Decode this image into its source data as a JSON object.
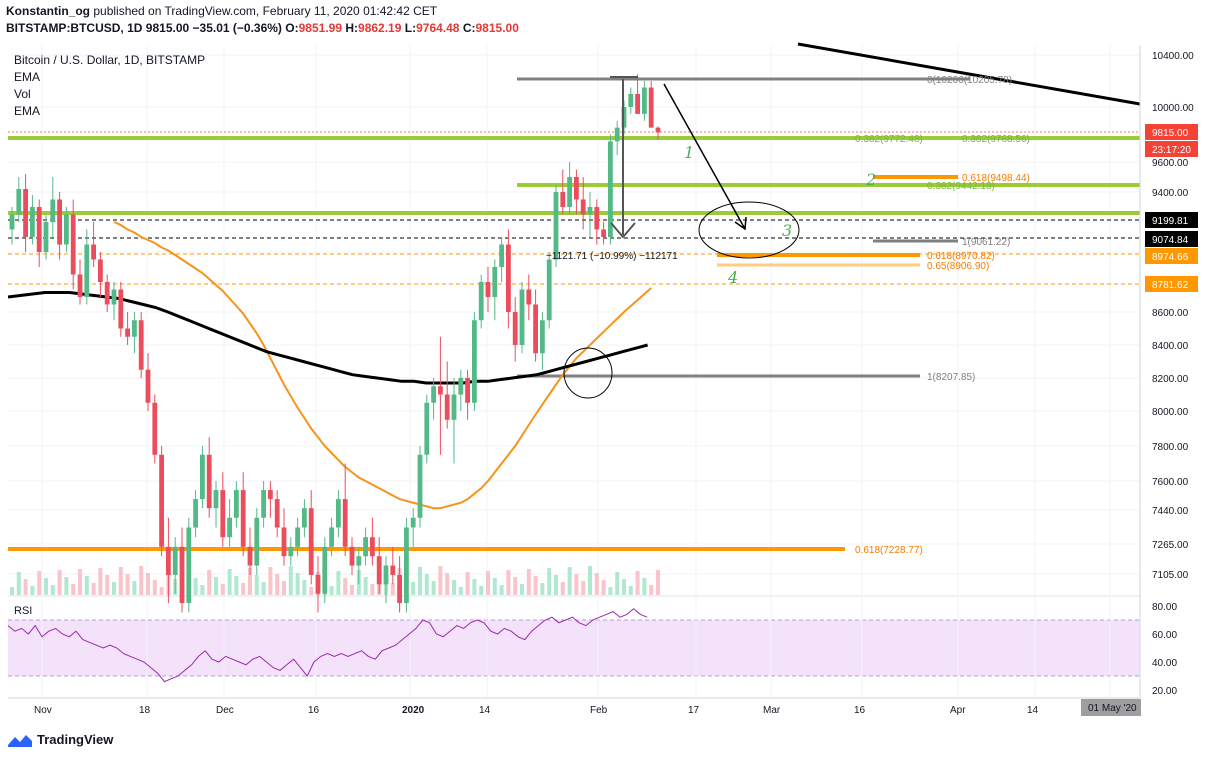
{
  "header": {
    "author": "Konstantin_og",
    "published_text": "published on TradingView.com, February 11, 2020 01:42:42 CET",
    "symbol": "BITSTAMP:BTCUSD, 1D",
    "last": "9815.00",
    "change": "−35.01 (−0.36%)",
    "o_label": "O:",
    "o": "9851.99",
    "h_label": "H:",
    "h": "9862.19",
    "l_label": "L:",
    "l": "9764.48",
    "c_label": "C:",
    "c": "9815.00"
  },
  "legend": {
    "title": "Bitcoin / U.S. Dollar, 1D, BITSTAMP",
    "items": [
      "EMA",
      "Vol",
      "EMA"
    ]
  },
  "rsi_label": "RSI",
  "footer": {
    "brand": "TradingView"
  },
  "colors": {
    "up": "#53b987",
    "down": "#eb4d5c",
    "ema_orange": "#f7931a",
    "ema_black": "#000000",
    "fib_green": "#9ccc35",
    "fib_orange": "#ff9800",
    "fib_gray": "#808080",
    "rsi_line": "#9c27b0",
    "rsi_band": "#f3e2fa"
  },
  "chart_data": {
    "type": "candlestick",
    "title": "Bitcoin / U.S. Dollar, 1D, BITSTAMP",
    "x_ticks": [
      "Nov",
      "18",
      "Dec",
      "16",
      "2020",
      "14",
      "Feb",
      "17",
      "Mar",
      "16",
      "Apr",
      "14",
      "01 May '20"
    ],
    "y_ticks": [
      "10400.00",
      "10000.00",
      "9600.00",
      "9400.00",
      "9200.00",
      "9000.00",
      "8600.00",
      "8400.00",
      "8200.00",
      "8000.00",
      "7800.00",
      "7600.00",
      "7440.00",
      "7265.00",
      "7105.00"
    ],
    "rsi_ticks": [
      "80.00",
      "60.00",
      "40.00",
      "20.00"
    ],
    "price_labels": [
      {
        "text": "9815.00",
        "kind": "last"
      },
      {
        "text": "23:17:20",
        "kind": "timer"
      },
      {
        "text": "9199.81",
        "kind": "black"
      },
      {
        "text": "9074.84",
        "kind": "black"
      },
      {
        "text": "8974.66",
        "kind": "orange"
      },
      {
        "text": "8781.62",
        "kind": "orange"
      }
    ],
    "fib_labels": [
      {
        "text": "0(10206(10205.78)",
        "color": "gray"
      },
      {
        "text": "0.382(9772.48)",
        "color": "green"
      },
      {
        "text": "0.382(9768.56)",
        "color": "green"
      },
      {
        "text": "0.618(9498.44)",
        "color": "orange"
      },
      {
        "text": "0.382(9442.18)",
        "color": "green"
      },
      {
        "text": "1(9061.22)",
        "color": "gray"
      },
      {
        "text": "0.618(8970.82)",
        "color": "orange"
      },
      {
        "text": "0.65(8906.90)",
        "color": "orange"
      },
      {
        "text": "1(8207.85)",
        "color": "gray"
      },
      {
        "text": "0.618(7228.77)",
        "color": "orange"
      }
    ],
    "measure_label": "−1121.71 (−10.99%) −112171",
    "wave_numbers": [
      "1",
      "2",
      "3",
      "4"
    ],
    "candles": [
      [
        9150,
        9300,
        9050,
        9250
      ],
      [
        9250,
        9500,
        9200,
        9420
      ],
      [
        9420,
        9520,
        9000,
        9100
      ],
      [
        9100,
        9380,
        9050,
        9300
      ],
      [
        9300,
        9350,
        8900,
        9000
      ],
      [
        9000,
        9250,
        8950,
        9200
      ],
      [
        9200,
        9500,
        9100,
        9350
      ],
      [
        9350,
        9400,
        8950,
        9050
      ],
      [
        9050,
        9300,
        9000,
        9250
      ],
      [
        9250,
        9350,
        8750,
        8850
      ],
      [
        8850,
        8950,
        8650,
        8700
      ],
      [
        8700,
        9150,
        8650,
        9050
      ],
      [
        9050,
        9200,
        8900,
        8950
      ],
      [
        8950,
        9000,
        8700,
        8800
      ],
      [
        8800,
        8850,
        8600,
        8650
      ],
      [
        8650,
        8800,
        8550,
        8750
      ],
      [
        8750,
        8800,
        8450,
        8500
      ],
      [
        8500,
        8600,
        8400,
        8450
      ],
      [
        8450,
        8600,
        8350,
        8550
      ],
      [
        8550,
        8600,
        8200,
        8250
      ],
      [
        8250,
        8350,
        8000,
        8050
      ],
      [
        8050,
        8100,
        7700,
        7750
      ],
      [
        7750,
        7800,
        7200,
        7250
      ],
      [
        7250,
        7400,
        6950,
        7100
      ],
      [
        7100,
        7300,
        7000,
        7250
      ],
      [
        7250,
        7350,
        6900,
        6950
      ],
      [
        6950,
        7400,
        6900,
        7350
      ],
      [
        7350,
        7550,
        7300,
        7500
      ],
      [
        7500,
        7800,
        7450,
        7750
      ],
      [
        7750,
        7850,
        7400,
        7450
      ],
      [
        7450,
        7600,
        7350,
        7550
      ],
      [
        7550,
        7650,
        7250,
        7300
      ],
      [
        7300,
        7500,
        7250,
        7400
      ],
      [
        7400,
        7600,
        7350,
        7550
      ],
      [
        7550,
        7650,
        7200,
        7250
      ],
      [
        7250,
        7350,
        7100,
        7150
      ],
      [
        7150,
        7450,
        7100,
        7400
      ],
      [
        7400,
        7600,
        7350,
        7550
      ],
      [
        7550,
        7600,
        7400,
        7500
      ],
      [
        7500,
        7550,
        7300,
        7350
      ],
      [
        7350,
        7450,
        7150,
        7200
      ],
      [
        7200,
        7300,
        7150,
        7250
      ],
      [
        7250,
        7400,
        7200,
        7350
      ],
      [
        7350,
        7500,
        7300,
        7450
      ],
      [
        7450,
        7550,
        7050,
        7100
      ],
      [
        7100,
        7200,
        6900,
        7000
      ],
      [
        7000,
        7300,
        6950,
        7250
      ],
      [
        7250,
        7400,
        7200,
        7350
      ],
      [
        7350,
        7550,
        7300,
        7500
      ],
      [
        7500,
        7700,
        7200,
        7250
      ],
      [
        7250,
        7300,
        7100,
        7150
      ],
      [
        7150,
        7250,
        7050,
        7200
      ],
      [
        7200,
        7350,
        7150,
        7300
      ],
      [
        7300,
        7400,
        7150,
        7200
      ],
      [
        7200,
        7300,
        7000,
        7050
      ],
      [
        7050,
        7200,
        6950,
        7150
      ],
      [
        7150,
        7250,
        7050,
        7100
      ],
      [
        7100,
        7200,
        6900,
        6950
      ],
      [
        6950,
        7400,
        6900,
        7350
      ],
      [
        7350,
        7450,
        7250,
        7400
      ],
      [
        7400,
        7800,
        7350,
        7750
      ],
      [
        7750,
        8100,
        7700,
        8050
      ],
      [
        8050,
        8200,
        7950,
        8150
      ],
      [
        8150,
        8450,
        7750,
        8100
      ],
      [
        8100,
        8300,
        7900,
        7950
      ],
      [
        7950,
        8200,
        7700,
        8100
      ],
      [
        8100,
        8250,
        8000,
        8200
      ],
      [
        8200,
        8250,
        7950,
        8050
      ],
      [
        8050,
        8600,
        8000,
        8550
      ],
      [
        8550,
        8850,
        8500,
        8800
      ],
      [
        8800,
        8900,
        8600,
        8700
      ],
      [
        8700,
        8950,
        8550,
        8900
      ],
      [
        8900,
        9100,
        8800,
        9050
      ],
      [
        9050,
        9150,
        8500,
        8600
      ],
      [
        8600,
        8700,
        8300,
        8400
      ],
      [
        8400,
        8800,
        8350,
        8750
      ],
      [
        8750,
        8850,
        8550,
        8650
      ],
      [
        8650,
        8750,
        8300,
        8350
      ],
      [
        8350,
        8600,
        8250,
        8550
      ],
      [
        8550,
        9000,
        8500,
        8950
      ],
      [
        8950,
        9450,
        8900,
        9400
      ],
      [
        9400,
        9550,
        9250,
        9300
      ],
      [
        9300,
        9600,
        9250,
        9500
      ],
      [
        9500,
        9550,
        9250,
        9350
      ],
      [
        9350,
        9500,
        9150,
        9250
      ],
      [
        9250,
        9400,
        9100,
        9300
      ],
      [
        9300,
        9350,
        9050,
        9150
      ],
      [
        9150,
        9200,
        9050,
        9100
      ],
      [
        9100,
        9800,
        9050,
        9750
      ],
      [
        9750,
        9900,
        9650,
        9850
      ],
      [
        9850,
        10050,
        9800,
        10000
      ],
      [
        10000,
        10150,
        9950,
        10100
      ],
      [
        10100,
        10250,
        9950,
        9950
      ],
      [
        9950,
        10200,
        9900,
        10150
      ],
      [
        10150,
        10200,
        9850,
        9850
      ],
      [
        9850,
        9860,
        9760,
        9815
      ]
    ],
    "ema_orange": [
      9200,
      9180,
      9150,
      9130,
      9100,
      9080,
      9060,
      9030,
      9010,
      8980,
      8950,
      8920,
      8890,
      8860,
      8820,
      8780,
      8740,
      8690,
      8640,
      8590,
      8530,
      8470,
      8400,
      8320,
      8240,
      8160,
      8090,
      8020,
      7960,
      7900,
      7850,
      7800,
      7760,
      7720,
      7680,
      7650,
      7620,
      7600,
      7580,
      7560,
      7540,
      7520,
      7500,
      7490,
      7480,
      7470,
      7460,
      7450,
      7450,
      7460,
      7470,
      7480,
      7500,
      7530,
      7560,
      7600,
      7650,
      7700,
      7750,
      7800,
      7860,
      7920,
      7980,
      8040,
      8100,
      8160,
      8220,
      8270,
      8320,
      8360,
      8400,
      8440,
      8480,
      8520,
      8560,
      8600,
      8640,
      8680,
      8720,
      8760
    ],
    "ema_black": [
      8700,
      8710,
      8720,
      8730,
      8730,
      8730,
      8720,
      8710,
      8700,
      8690,
      8670,
      8650,
      8630,
      8600,
      8570,
      8540,
      8510,
      8480,
      8450,
      8420,
      8390,
      8360,
      8340,
      8320,
      8300,
      8280,
      8260,
      8240,
      8220,
      8210,
      8200,
      8190,
      8180,
      8180,
      8170,
      8170,
      8170,
      8170,
      8180,
      8180,
      8190,
      8200,
      8210,
      8220,
      8240,
      8260,
      8280,
      8300,
      8320,
      8340,
      8360,
      8380,
      8400
    ],
    "rsi": [
      66,
      62,
      64,
      60,
      66,
      58,
      62,
      64,
      60,
      58,
      62,
      56,
      54,
      52,
      50,
      52,
      50,
      46,
      44,
      42,
      40,
      36,
      32,
      26,
      28,
      30,
      34,
      38,
      44,
      48,
      42,
      40,
      44,
      42,
      40,
      38,
      42,
      44,
      40,
      36,
      34,
      38,
      42,
      36,
      30,
      40,
      44,
      46,
      44,
      46,
      44,
      46,
      48,
      44,
      42,
      48,
      50,
      52,
      56,
      60,
      64,
      70,
      68,
      60,
      58,
      62,
      66,
      64,
      68,
      70,
      68,
      62,
      60,
      64,
      62,
      58,
      56,
      62,
      66,
      70,
      72,
      68,
      70,
      72,
      68,
      66,
      70,
      72,
      74,
      76,
      72,
      74,
      78,
      74,
      72
    ]
  }
}
